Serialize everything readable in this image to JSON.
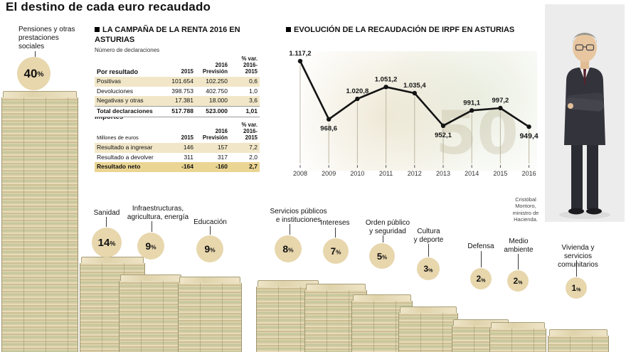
{
  "watermark_text": "50",
  "photo": {
    "caption": "Cristóbal Montoro, ministro de Hacienda."
  },
  "chart_data": [
    {
      "type": "line",
      "title": "EVOLUCIÓN DE LA RECAUDACIÓN DE IRPF EN ASTURIAS",
      "x": [
        "2008",
        "2009",
        "2010",
        "2011",
        "2012",
        "2013",
        "2014",
        "2015",
        "2016"
      ],
      "values": [
        1117.2,
        968.6,
        1020.8,
        1051.2,
        1035.4,
        952.1,
        991.1,
        997.2,
        949.4
      ],
      "point_labels": [
        "1.117,2",
        "968,6",
        "1.020,8",
        "1.051,2",
        "1.035,4",
        "952,1",
        "991,1",
        "997,2",
        "949,4"
      ],
      "label_side": [
        "above",
        "below",
        "above",
        "above",
        "above",
        "below",
        "above",
        "above",
        "below"
      ],
      "ylim": [
        930,
        1130
      ],
      "legend": "none",
      "grid": "vertical-guides"
    },
    {
      "type": "bar",
      "title": "El destino de cada euro recaudado",
      "unit": "%",
      "categories": [
        "Pensiones y otras\nprestaciones\nsociales",
        "Sanidad",
        "Infraestructuras,\nagricultura, energía",
        "Educación",
        "Servicios públicos\ne instituciones",
        "Intereses",
        "Orden público\ny seguridad",
        "Cultura\ny deporte",
        "Defensa",
        "Medio\nambiente",
        "Vivienda y servicios\ncomunitarios"
      ],
      "values": [
        40,
        14,
        9,
        9,
        8,
        7,
        5,
        3,
        2,
        2,
        1
      ]
    },
    {
      "type": "table",
      "title": "LA CAMPAÑA DE LA RENTA 2016 EN ASTURIAS",
      "subtitle": "Número de declaraciones",
      "sections": [
        {
          "row_header": "Por resultado",
          "cols": [
            "2015",
            "2016\nPrevisión",
            "% var.\n2016-2015"
          ],
          "rows": [
            [
              "Positivas",
              "101.654",
              "102.250",
              "0,6"
            ],
            [
              "Devoluciones",
              "398.753",
              "402.750",
              "1,0"
            ],
            [
              "Negativas y otras",
              "17.381",
              "18.000",
              "3,6"
            ],
            [
              "Total declaraciones",
              "517.788",
              "523.000",
              "1,01"
            ]
          ]
        },
        {
          "section_title": "Importes",
          "row_header": "Millones de euros",
          "cols": [
            "2015",
            "2016\nPrevisión",
            "% var.\n2016-2015"
          ],
          "rows": [
            [
              "Resultado a ingresar",
              "146",
              "157",
              "7,2"
            ],
            [
              "Resultado a devolver",
              "311",
              "317",
              "2,0"
            ],
            [
              "Resultado neto",
              "-164",
              "-160",
              "2,7"
            ]
          ]
        }
      ]
    }
  ]
}
